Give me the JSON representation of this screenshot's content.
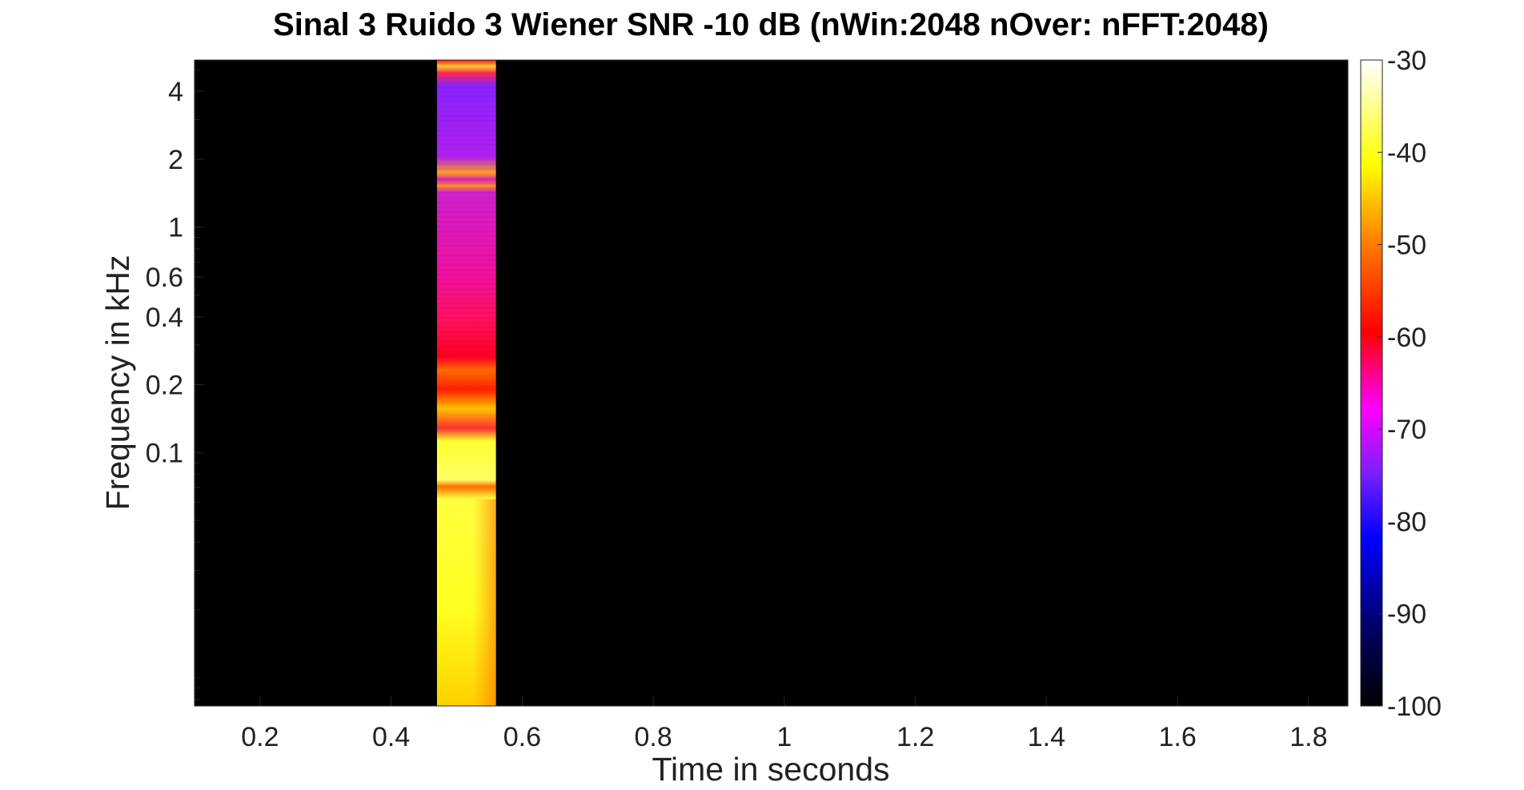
{
  "chart_data": {
    "type": "heatmap",
    "title": "Sinal 3 Ruido 3 Wiener SNR -10 dB (nWin:2048 nOver: nFFT:2048)",
    "xlabel": "Time in seconds",
    "ylabel": "Frequency in kHz",
    "x_ticks": [
      "0.2",
      "0.4",
      "0.6",
      "0.8",
      "1",
      "1.2",
      "1.4",
      "1.6",
      "1.8"
    ],
    "y_ticks": [
      "4",
      "2",
      "1",
      "0.6",
      "0.4",
      "0.2",
      "0.1"
    ],
    "y_scale": "log",
    "xlim": [
      0.1,
      1.86
    ],
    "ylim_khz": [
      0.0075,
      5.512
    ],
    "colorbar": {
      "ticks": [
        "-30",
        "-40",
        "-50",
        "-60",
        "-70",
        "-80",
        "-90",
        "-100"
      ],
      "range": [
        -100,
        -30
      ],
      "colormap": "hot-to-blue",
      "background_color": "#000000"
    },
    "active_band": {
      "t_start": 0.47,
      "t_end": 0.56,
      "profile": [
        {
          "f_khz": 0.008,
          "db": -42
        },
        {
          "f_khz": 0.03,
          "db": -40
        },
        {
          "f_khz": 0.055,
          "db": -50
        },
        {
          "f_khz": 0.08,
          "db": -44
        },
        {
          "f_khz": 0.12,
          "db": -46
        },
        {
          "f_khz": 0.13,
          "db": -62
        },
        {
          "f_khz": 0.16,
          "db": -48
        },
        {
          "f_khz": 0.2,
          "db": -56
        },
        {
          "f_khz": 0.3,
          "db": -60
        },
        {
          "f_khz": 0.5,
          "db": -64
        },
        {
          "f_khz": 1.0,
          "db": -70
        },
        {
          "f_khz": 1.5,
          "db": -54
        },
        {
          "f_khz": 2.0,
          "db": -72
        },
        {
          "f_khz": 4.0,
          "db": -78
        },
        {
          "f_khz": 4.8,
          "db": -55
        },
        {
          "f_khz": 5.5,
          "db": -58
        }
      ]
    }
  }
}
